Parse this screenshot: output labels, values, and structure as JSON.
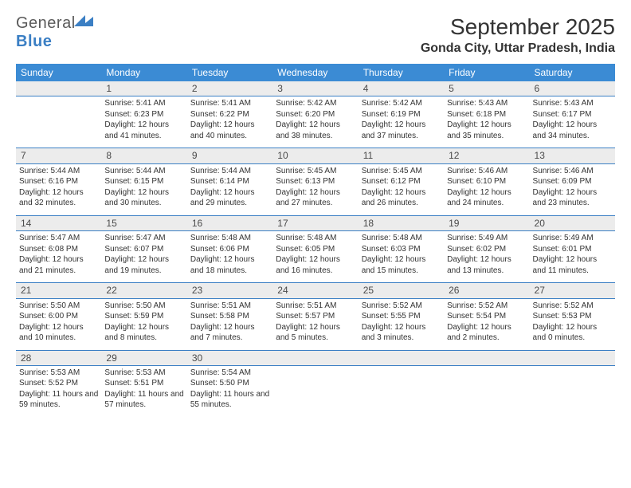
{
  "logo": {
    "text1": "General",
    "text2": "Blue"
  },
  "title": "September 2025",
  "location": "Gonda City, Uttar Pradesh, India",
  "header_bg": "#3b8bd4",
  "rule_color": "#3b7fc4",
  "daynum_bg": "#ececec",
  "weekdays": [
    "Sunday",
    "Monday",
    "Tuesday",
    "Wednesday",
    "Thursday",
    "Friday",
    "Saturday"
  ],
  "weeks": [
    [
      null,
      {
        "d": "1",
        "sr": "5:41 AM",
        "ss": "6:23 PM",
        "dl": "12 hours and 41 minutes."
      },
      {
        "d": "2",
        "sr": "5:41 AM",
        "ss": "6:22 PM",
        "dl": "12 hours and 40 minutes."
      },
      {
        "d": "3",
        "sr": "5:42 AM",
        "ss": "6:20 PM",
        "dl": "12 hours and 38 minutes."
      },
      {
        "d": "4",
        "sr": "5:42 AM",
        "ss": "6:19 PM",
        "dl": "12 hours and 37 minutes."
      },
      {
        "d": "5",
        "sr": "5:43 AM",
        "ss": "6:18 PM",
        "dl": "12 hours and 35 minutes."
      },
      {
        "d": "6",
        "sr": "5:43 AM",
        "ss": "6:17 PM",
        "dl": "12 hours and 34 minutes."
      }
    ],
    [
      {
        "d": "7",
        "sr": "5:44 AM",
        "ss": "6:16 PM",
        "dl": "12 hours and 32 minutes."
      },
      {
        "d": "8",
        "sr": "5:44 AM",
        "ss": "6:15 PM",
        "dl": "12 hours and 30 minutes."
      },
      {
        "d": "9",
        "sr": "5:44 AM",
        "ss": "6:14 PM",
        "dl": "12 hours and 29 minutes."
      },
      {
        "d": "10",
        "sr": "5:45 AM",
        "ss": "6:13 PM",
        "dl": "12 hours and 27 minutes."
      },
      {
        "d": "11",
        "sr": "5:45 AM",
        "ss": "6:12 PM",
        "dl": "12 hours and 26 minutes."
      },
      {
        "d": "12",
        "sr": "5:46 AM",
        "ss": "6:10 PM",
        "dl": "12 hours and 24 minutes."
      },
      {
        "d": "13",
        "sr": "5:46 AM",
        "ss": "6:09 PM",
        "dl": "12 hours and 23 minutes."
      }
    ],
    [
      {
        "d": "14",
        "sr": "5:47 AM",
        "ss": "6:08 PM",
        "dl": "12 hours and 21 minutes."
      },
      {
        "d": "15",
        "sr": "5:47 AM",
        "ss": "6:07 PM",
        "dl": "12 hours and 19 minutes."
      },
      {
        "d": "16",
        "sr": "5:48 AM",
        "ss": "6:06 PM",
        "dl": "12 hours and 18 minutes."
      },
      {
        "d": "17",
        "sr": "5:48 AM",
        "ss": "6:05 PM",
        "dl": "12 hours and 16 minutes."
      },
      {
        "d": "18",
        "sr": "5:48 AM",
        "ss": "6:03 PM",
        "dl": "12 hours and 15 minutes."
      },
      {
        "d": "19",
        "sr": "5:49 AM",
        "ss": "6:02 PM",
        "dl": "12 hours and 13 minutes."
      },
      {
        "d": "20",
        "sr": "5:49 AM",
        "ss": "6:01 PM",
        "dl": "12 hours and 11 minutes."
      }
    ],
    [
      {
        "d": "21",
        "sr": "5:50 AM",
        "ss": "6:00 PM",
        "dl": "12 hours and 10 minutes."
      },
      {
        "d": "22",
        "sr": "5:50 AM",
        "ss": "5:59 PM",
        "dl": "12 hours and 8 minutes."
      },
      {
        "d": "23",
        "sr": "5:51 AM",
        "ss": "5:58 PM",
        "dl": "12 hours and 7 minutes."
      },
      {
        "d": "24",
        "sr": "5:51 AM",
        "ss": "5:57 PM",
        "dl": "12 hours and 5 minutes."
      },
      {
        "d": "25",
        "sr": "5:52 AM",
        "ss": "5:55 PM",
        "dl": "12 hours and 3 minutes."
      },
      {
        "d": "26",
        "sr": "5:52 AM",
        "ss": "5:54 PM",
        "dl": "12 hours and 2 minutes."
      },
      {
        "d": "27",
        "sr": "5:52 AM",
        "ss": "5:53 PM",
        "dl": "12 hours and 0 minutes."
      }
    ],
    [
      {
        "d": "28",
        "sr": "5:53 AM",
        "ss": "5:52 PM",
        "dl": "11 hours and 59 minutes."
      },
      {
        "d": "29",
        "sr": "5:53 AM",
        "ss": "5:51 PM",
        "dl": "11 hours and 57 minutes."
      },
      {
        "d": "30",
        "sr": "5:54 AM",
        "ss": "5:50 PM",
        "dl": "11 hours and 55 minutes."
      },
      null,
      null,
      null,
      null
    ]
  ],
  "labels": {
    "sunrise": "Sunrise:",
    "sunset": "Sunset:",
    "daylight": "Daylight:"
  }
}
